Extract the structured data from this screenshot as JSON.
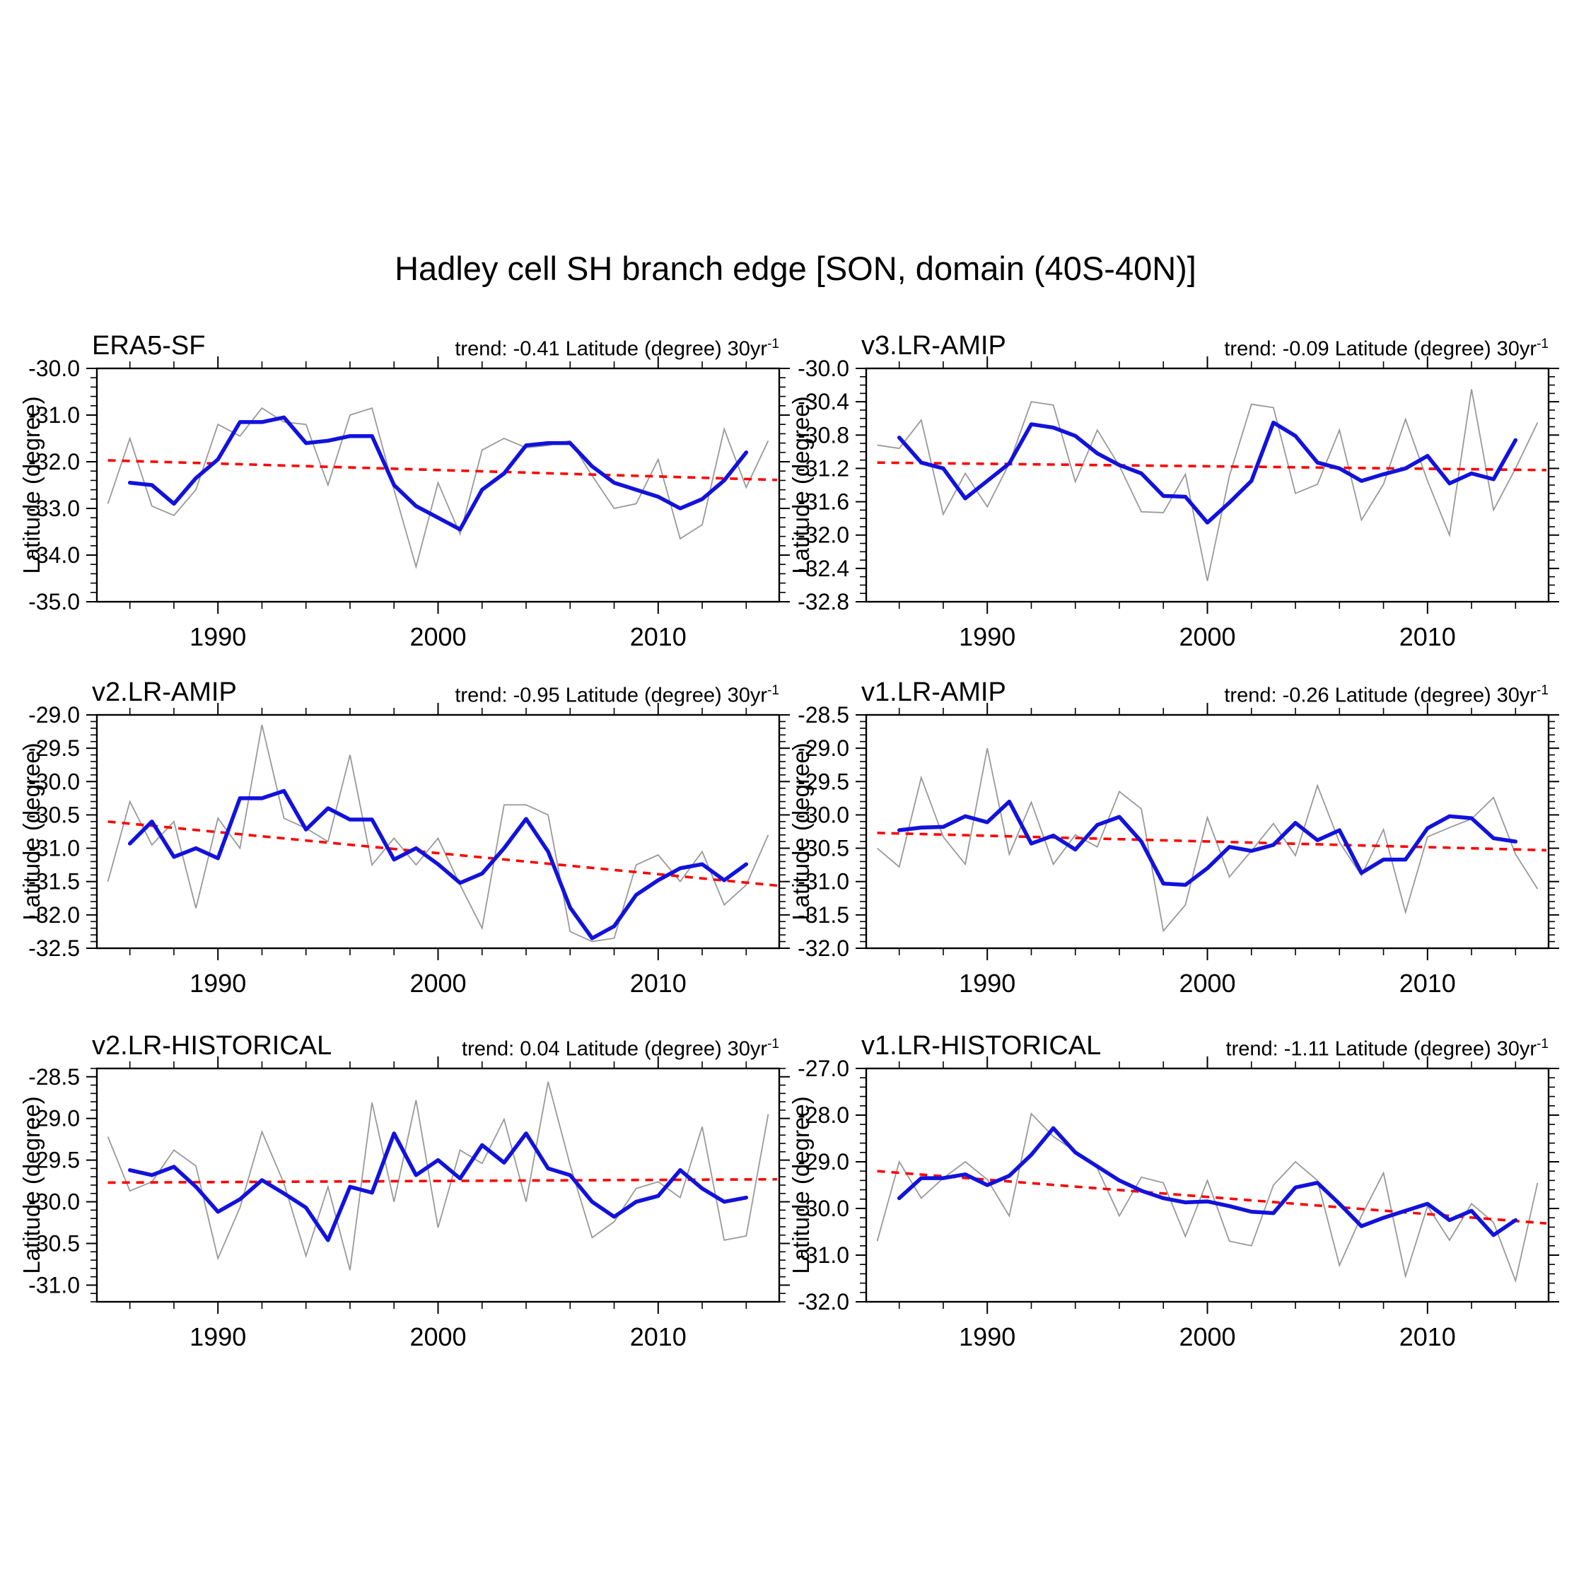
{
  "title": "Hadley cell SH branch edge [SON, domain (40S-40N)]",
  "ylabel": "Latitude (degree)",
  "colors": {
    "raw_series": "#999999",
    "smoothed_series": "#1212dd",
    "trend_line": "#ff0000",
    "frame": "#000000",
    "text": "#000000"
  },
  "x_axis": {
    "lim": [
      1984.5,
      2015.5
    ],
    "major_ticks": [
      1990,
      2000,
      2010
    ],
    "major_labels": [
      "1990",
      "2000",
      "2010"
    ],
    "minor_step_years": 2
  },
  "chart_data": [
    {
      "type": "line",
      "name": "ERA5-SF",
      "trend_label": "trend: -0.41 Latitude (degree) 30yr",
      "trend_sup": "-1",
      "trend_value_deg_per_30yr": -0.41,
      "ylim": [
        -35.0,
        -30.0
      ],
      "y_major_step": 1.0,
      "y_minor_step": 0.2,
      "raw": {
        "start_year": 1985,
        "end_year": 2015,
        "values": [
          -32.9,
          -31.5,
          -32.95,
          -33.15,
          -32.6,
          -31.2,
          -31.45,
          -30.85,
          -31.15,
          -31.2,
          -32.5,
          -31.0,
          -30.85,
          -32.6,
          -34.25,
          -32.45,
          -33.55,
          -31.75,
          -31.5,
          -31.7,
          -31.65,
          -31.55,
          -32.3,
          -33.0,
          -32.9,
          -31.95,
          -33.65,
          -33.35,
          -31.3,
          -32.55,
          -31.55
        ]
      },
      "smooth": {
        "start_year": 1986,
        "end_year": 2014,
        "values": [
          -32.45,
          -32.5,
          -32.9,
          -32.35,
          -31.95,
          -31.15,
          -31.15,
          -31.05,
          -31.6,
          -31.55,
          -31.45,
          -31.45,
          -32.5,
          -32.95,
          -33.2,
          -33.45,
          -32.6,
          -32.25,
          -31.65,
          -31.6,
          -31.6,
          -32.1,
          -32.45,
          -32.6,
          -32.75,
          -33.0,
          -32.8,
          -32.4,
          -31.8
        ]
      },
      "trend_line": {
        "x": [
          1985,
          2015.4
        ],
        "y": [
          -31.97,
          -32.39
        ]
      }
    },
    {
      "type": "line",
      "name": "v3.LR-AMIP",
      "trend_label": "trend: -0.09 Latitude (degree) 30yr",
      "trend_sup": "-1",
      "trend_value_deg_per_30yr": -0.09,
      "ylim": [
        -32.8,
        -30.0
      ],
      "y_major_step": 0.4,
      "y_minor_step": 0.1,
      "raw": {
        "start_year": 1985,
        "end_year": 2015,
        "values": [
          -30.92,
          -30.96,
          -30.62,
          -31.75,
          -31.26,
          -31.66,
          -31.14,
          -30.4,
          -30.44,
          -31.36,
          -30.74,
          -31.17,
          -31.72,
          -31.73,
          -31.27,
          -32.55,
          -31.29,
          -30.43,
          -30.47,
          -31.5,
          -31.39,
          -30.74,
          -31.82,
          -31.39,
          -30.61,
          -31.35,
          -32.0,
          -30.25,
          -31.7,
          -31.2,
          -30.65
        ]
      },
      "smooth": {
        "start_year": 1986,
        "end_year": 2014,
        "values": [
          -30.83,
          -31.13,
          -31.2,
          -31.56,
          -31.35,
          -31.14,
          -30.67,
          -30.71,
          -30.81,
          -31.02,
          -31.16,
          -31.26,
          -31.53,
          -31.54,
          -31.85,
          -31.61,
          -31.35,
          -30.65,
          -30.81,
          -31.13,
          -31.2,
          -31.35,
          -31.27,
          -31.2,
          -31.05,
          -31.38,
          -31.26,
          -31.33,
          -30.86
        ]
      },
      "trend_line": {
        "x": [
          1985,
          2015.4
        ],
        "y": [
          -31.13,
          -31.22
        ]
      }
    },
    {
      "type": "line",
      "name": "v2.LR-AMIP",
      "trend_label": "trend: -0.95 Latitude (degree) 30yr",
      "trend_sup": "-1",
      "trend_value_deg_per_30yr": -0.95,
      "ylim": [
        -32.5,
        -29.0
      ],
      "y_major_step": 0.5,
      "y_minor_step": 0.1,
      "raw": {
        "start_year": 1985,
        "end_year": 2015,
        "values": [
          -31.5,
          -30.3,
          -30.95,
          -30.6,
          -31.9,
          -30.55,
          -31.0,
          -29.15,
          -30.55,
          -30.7,
          -30.9,
          -29.6,
          -31.25,
          -30.85,
          -31.25,
          -30.85,
          -31.55,
          -32.2,
          -30.35,
          -30.35,
          -30.5,
          -32.25,
          -32.4,
          -32.35,
          -31.25,
          -31.1,
          -31.5,
          -31.05,
          -31.85,
          -31.55,
          -30.8
        ]
      },
      "smooth": {
        "start_year": 1986,
        "end_year": 2014,
        "values": [
          -30.93,
          -30.6,
          -31.13,
          -31.0,
          -31.15,
          -30.25,
          -30.25,
          -30.14,
          -30.72,
          -30.4,
          -30.57,
          -30.57,
          -31.17,
          -31.0,
          -31.24,
          -31.52,
          -31.38,
          -31.0,
          -30.56,
          -31.05,
          -31.89,
          -32.35,
          -32.17,
          -31.7,
          -31.48,
          -31.3,
          -31.24,
          -31.48,
          -31.24
        ]
      },
      "trend_line": {
        "x": [
          1985,
          2015.4
        ],
        "y": [
          -30.6,
          -31.56
        ]
      }
    },
    {
      "type": "line",
      "name": "v1.LR-AMIP",
      "trend_label": "trend: -0.26 Latitude (degree) 30yr",
      "trend_sup": "-1",
      "trend_value_deg_per_30yr": -0.26,
      "ylim": [
        -32.0,
        -28.5
      ],
      "y_major_step": 0.5,
      "y_minor_step": 0.1,
      "raw": {
        "start_year": 1985,
        "end_year": 2015,
        "values": [
          -30.5,
          -30.78,
          -29.44,
          -30.33,
          -30.74,
          -29.0,
          -30.59,
          -29.81,
          -30.74,
          -30.3,
          -30.48,
          -29.65,
          -29.91,
          -31.74,
          -31.35,
          -30.04,
          -30.93,
          -30.54,
          -30.13,
          -30.61,
          -29.56,
          -30.41,
          -30.91,
          -30.22,
          -31.46,
          -30.33,
          -30.19,
          -30.06,
          -29.74,
          -30.59,
          -31.11
        ]
      },
      "smooth": {
        "start_year": 1986,
        "end_year": 2014,
        "values": [
          -30.23,
          -30.19,
          -30.18,
          -30.02,
          -30.11,
          -29.8,
          -30.43,
          -30.31,
          -30.52,
          -30.15,
          -30.03,
          -30.4,
          -31.03,
          -31.05,
          -30.8,
          -30.48,
          -30.54,
          -30.45,
          -30.12,
          -30.38,
          -30.23,
          -30.87,
          -30.67,
          -30.67,
          -30.2,
          -30.02,
          -30.05,
          -30.35,
          -30.4
        ]
      },
      "trend_line": {
        "x": [
          1985,
          2015.4
        ],
        "y": [
          -30.27,
          -30.53
        ]
      }
    },
    {
      "type": "line",
      "name": "v2.LR-HISTORICAL",
      "trend_label": "trend: 0.04 Latitude (degree) 30yr",
      "trend_sup": "-1",
      "trend_value_deg_per_30yr": 0.04,
      "ylim": [
        -31.2,
        -28.4
      ],
      "y_major_step": 0.5,
      "y_minor_step": 0.1,
      "raw": {
        "start_year": 1985,
        "end_year": 2015,
        "values": [
          -29.22,
          -29.87,
          -29.76,
          -29.38,
          -29.57,
          -30.68,
          -30.07,
          -29.16,
          -29.78,
          -30.65,
          -29.82,
          -30.82,
          -28.81,
          -30.0,
          -28.78,
          -30.31,
          -29.38,
          -29.54,
          -29.01,
          -30.0,
          -28.56,
          -29.56,
          -30.43,
          -30.24,
          -29.84,
          -29.76,
          -29.95,
          -29.1,
          -30.46,
          -30.41,
          -28.95
        ]
      },
      "smooth": {
        "start_year": 1986,
        "end_year": 2014,
        "values": [
          -29.62,
          -29.68,
          -29.58,
          -29.82,
          -30.12,
          -29.97,
          -29.74,
          -29.9,
          -30.07,
          -30.46,
          -29.82,
          -29.89,
          -29.18,
          -29.68,
          -29.5,
          -29.72,
          -29.32,
          -29.53,
          -29.18,
          -29.6,
          -29.68,
          -30.0,
          -30.18,
          -30.0,
          -29.93,
          -29.62,
          -29.84,
          -30.0,
          -29.95
        ]
      },
      "trend_line": {
        "x": [
          1985,
          2015.4
        ],
        "y": [
          -29.77,
          -29.73
        ]
      }
    },
    {
      "type": "line",
      "name": "v1.LR-HISTORICAL",
      "trend_label": "trend: -1.11 Latitude (degree) 30yr",
      "trend_sup": "-1",
      "trend_value_deg_per_30yr": -1.11,
      "ylim": [
        -32.0,
        -27.0
      ],
      "y_major_step": 1.0,
      "y_minor_step": 0.2,
      "raw": {
        "start_year": 1985,
        "end_year": 2015,
        "values": [
          -30.7,
          -29.0,
          -29.78,
          -29.35,
          -29.0,
          -29.38,
          -30.16,
          -27.97,
          -28.46,
          -28.78,
          -29.14,
          -30.16,
          -29.33,
          -29.45,
          -30.6,
          -29.4,
          -30.7,
          -30.8,
          -29.5,
          -29.0,
          -29.4,
          -31.22,
          -30.16,
          -29.24,
          -31.45,
          -29.95,
          -30.68,
          -29.9,
          -30.3,
          -31.55,
          -29.45
        ]
      },
      "smooth": {
        "start_year": 1986,
        "end_year": 2014,
        "values": [
          -29.78,
          -29.35,
          -29.35,
          -29.27,
          -29.5,
          -29.3,
          -28.85,
          -28.28,
          -28.8,
          -29.1,
          -29.4,
          -29.62,
          -29.78,
          -29.87,
          -29.85,
          -29.95,
          -30.07,
          -30.1,
          -29.55,
          -29.45,
          -29.9,
          -30.38,
          -30.2,
          -30.05,
          -29.9,
          -30.25,
          -30.05,
          -30.57,
          -30.25
        ]
      },
      "trend_line": {
        "x": [
          1985,
          2015.4
        ],
        "y": [
          -29.2,
          -30.32
        ]
      }
    }
  ]
}
